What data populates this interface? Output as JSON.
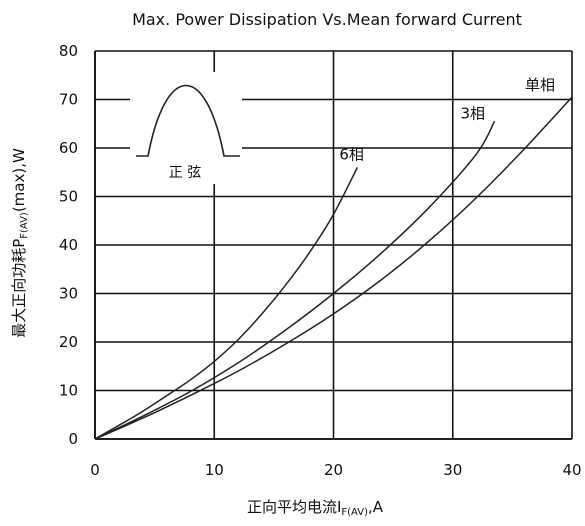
{
  "chart_data": {
    "type": "line",
    "title": "Max. Power Dissipation Vs.Mean forward Current",
    "xlabel": "正向平均电流I",
    "xlabel_sub": "F(AV)",
    "xlabel_tail": ",A",
    "ylabel": "最大正向功耗P",
    "ylabel_sub": "F(AV)",
    "ylabel_tail": "(max),W",
    "xlim": [
      0,
      40
    ],
    "ylim": [
      0,
      80
    ],
    "x_ticks": [
      "0",
      "10",
      "20",
      "30",
      "40"
    ],
    "y_ticks": [
      "0",
      "10",
      "20",
      "30",
      "40",
      "50",
      "60",
      "70",
      "80"
    ],
    "grid": true,
    "inset": {
      "waveform": "half-sine",
      "label": "正  弦"
    },
    "series": [
      {
        "name": "6相",
        "x": [
          0,
          2,
          4,
          6,
          8,
          10,
          12,
          14,
          16,
          18,
          20,
          22
        ],
        "y": [
          0,
          2.8,
          5.7,
          8.9,
          12.2,
          16.0,
          20.5,
          25.8,
          31.8,
          38.5,
          46.3,
          56.0
        ]
      },
      {
        "name": "3相",
        "x": [
          0,
          4,
          8,
          12,
          16,
          20,
          24,
          28,
          32,
          33.5
        ],
        "y": [
          0,
          4.7,
          9.8,
          15.7,
          22.5,
          30.0,
          38.3,
          47.7,
          58.8,
          65.5
        ]
      },
      {
        "name": "单相",
        "x": [
          0,
          4,
          8,
          12,
          16,
          20,
          24,
          28,
          32,
          36,
          40
        ],
        "y": [
          0,
          4.3,
          9.0,
          14.0,
          19.6,
          25.8,
          32.8,
          40.8,
          49.8,
          59.8,
          70.5
        ]
      }
    ]
  }
}
